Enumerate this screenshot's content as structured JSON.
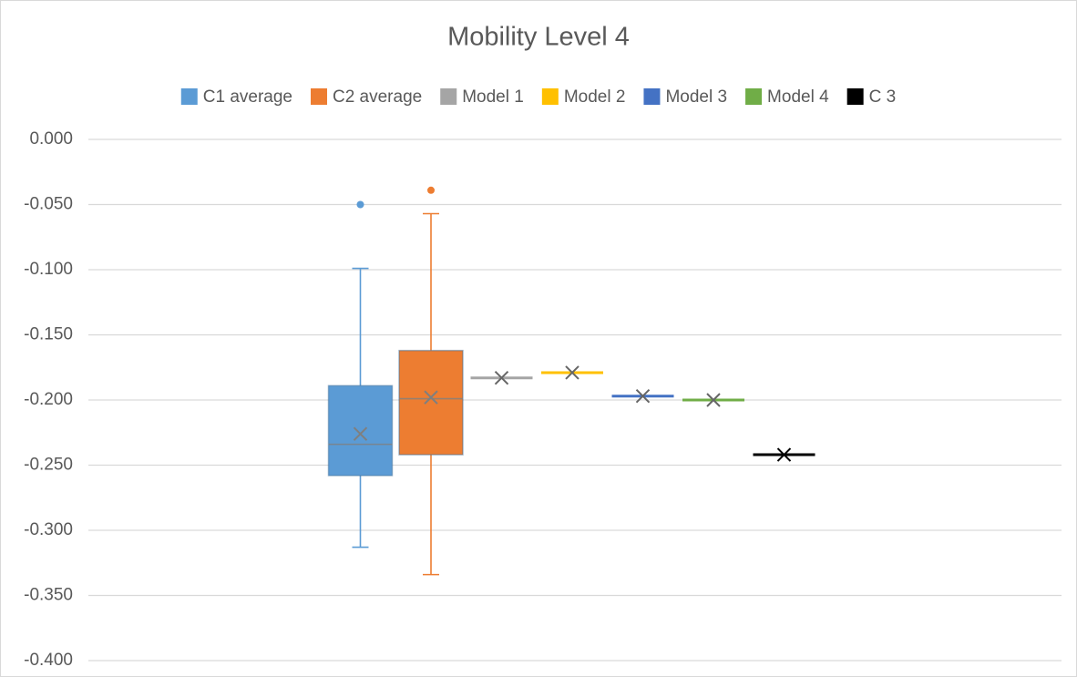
{
  "chart_data": {
    "type": "box",
    "title": "Mobility Level 4",
    "ylim": [
      -0.4,
      0
    ],
    "yticks": [
      {
        "value": 0,
        "label": "0.000"
      },
      {
        "value": -0.05,
        "label": "-0.050"
      },
      {
        "value": -0.1,
        "label": "-0.100"
      },
      {
        "value": -0.15,
        "label": "-0.150"
      },
      {
        "value": -0.2,
        "label": "-0.200"
      },
      {
        "value": -0.25,
        "label": "-0.250"
      },
      {
        "value": -0.3,
        "label": "-0.300"
      },
      {
        "value": -0.35,
        "label": "-0.350"
      },
      {
        "value": -0.4,
        "label": "-0.400"
      }
    ],
    "grid": true,
    "legend": "top",
    "series": [
      {
        "name": "C1 average",
        "color": "#5b9bd5",
        "min": -0.313,
        "q1": -0.258,
        "median": -0.234,
        "q3": -0.189,
        "max": -0.099,
        "mean": -0.226,
        "outliers": [
          -0.05
        ]
      },
      {
        "name": "C2 average",
        "color": "#ed7d31",
        "min": -0.334,
        "q1": -0.242,
        "median": -0.199,
        "q3": -0.162,
        "max": -0.057,
        "mean": -0.198,
        "outliers": [
          -0.039
        ]
      },
      {
        "name": "Model 1",
        "color": "#a5a5a5",
        "value": -0.183
      },
      {
        "name": "Model 2",
        "color": "#ffc000",
        "value": -0.179
      },
      {
        "name": "Model 3",
        "color": "#4472c4",
        "value": -0.197
      },
      {
        "name": "Model 4",
        "color": "#70ad47",
        "value": -0.2
      },
      {
        "name": "C 3",
        "color": "#000000",
        "value": -0.242
      }
    ]
  }
}
